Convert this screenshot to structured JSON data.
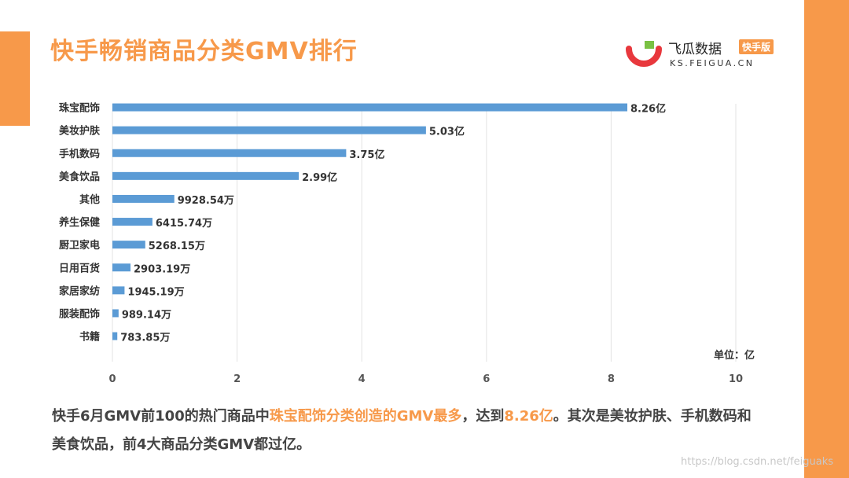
{
  "title": "快手畅销商品分类GMV排行",
  "brand": {
    "name": "飞瓜数据",
    "badge": "快手版",
    "domain": "KS.FEIGUA.CN",
    "colors": {
      "red": "#e8383d",
      "green": "#7ac143"
    }
  },
  "colors": {
    "accent": "#f7994a",
    "bar": "#5b9bd5"
  },
  "chart_data": {
    "type": "bar",
    "orientation": "horizontal",
    "categories": [
      "珠宝配饰",
      "美妆护肤",
      "手机数码",
      "美食饮品",
      "其他",
      "养生保健",
      "厨卫家电",
      "日用百货",
      "家居家纺",
      "服装配饰",
      "书籍"
    ],
    "values": [
      8.26,
      5.03,
      3.75,
      2.99,
      0.992854,
      0.641574,
      0.526815,
      0.290319,
      0.194519,
      0.098914,
      0.078385
    ],
    "value_labels": [
      "8.26亿",
      "5.03亿",
      "3.75亿",
      "2.99亿",
      "9928.54万",
      "6415.74万",
      "5268.15万",
      "2903.19万",
      "1945.19万",
      "989.14万",
      "783.85万"
    ],
    "xlim": [
      0,
      10
    ],
    "xticks": [
      0,
      2,
      4,
      6,
      8,
      10
    ],
    "unit_label": "单位：亿",
    "grid": true
  },
  "summary": {
    "part1": "快手6月GMV前100的热门商品中",
    "hl1": "珠宝配饰分类创造的GMV最多",
    "part2": "，达到",
    "hl2": "8.26亿",
    "part3": "。其次是美妆护肤、手机数码和美食饮品，前4大商品分类GMV都过亿。"
  },
  "watermark": "https://blog.csdn.net/feiguaks"
}
